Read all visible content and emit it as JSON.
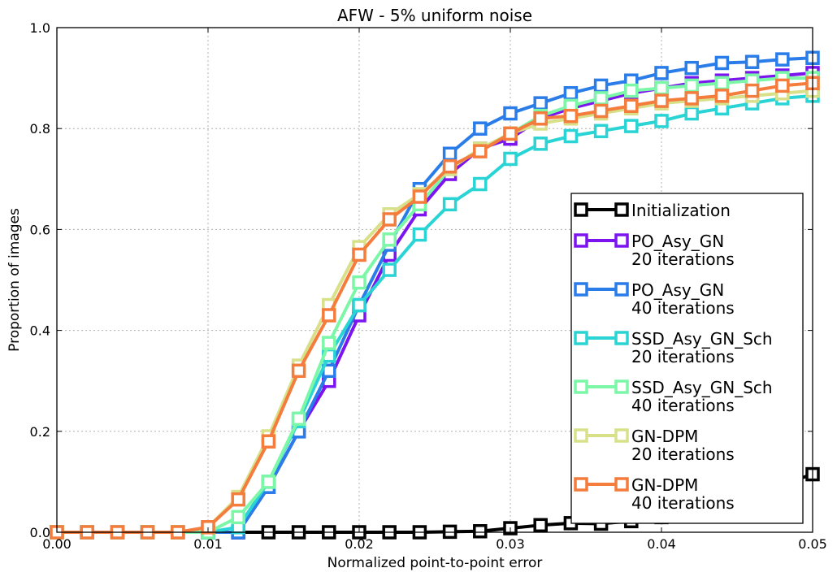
{
  "chart_data": {
    "type": "line",
    "title": "AFW - 5% uniform noise",
    "xlabel": "Normalized point-to-point error",
    "ylabel": "Proportion of images",
    "xlim": [
      0,
      0.05
    ],
    "ylim": [
      0,
      1.0
    ],
    "xticks": [
      "0.00",
      "0.01",
      "0.02",
      "0.03",
      "0.04",
      "0.05"
    ],
    "yticks": [
      "0.0",
      "0.2",
      "0.4",
      "0.6",
      "0.8",
      "1.0"
    ],
    "grid": true,
    "legend_position": "lower-right",
    "marker": "open-square",
    "x": [
      0.0,
      0.002,
      0.004,
      0.006,
      0.008,
      0.01,
      0.012,
      0.014,
      0.016,
      0.018,
      0.02,
      0.022,
      0.024,
      0.026,
      0.028,
      0.03,
      0.032,
      0.034,
      0.036,
      0.038,
      0.04,
      0.042,
      0.044,
      0.046,
      0.048,
      0.05
    ],
    "series": [
      {
        "name": "Initialization",
        "color": "#000000",
        "values": [
          0,
          0,
          0,
          0,
          0,
          0,
          0,
          0,
          0,
          0,
          0,
          0,
          0,
          0.001,
          0.002,
          0.008,
          0.014,
          0.018,
          0.017,
          0.022,
          0.03,
          0.04,
          0.055,
          0.075,
          0.095,
          0.115
        ]
      },
      {
        "name": "PO_Asy_GN\n20 iterations",
        "color": "#7b14ee",
        "values": [
          0,
          0,
          0,
          0,
          0,
          0,
          0,
          0.09,
          0.2,
          0.3,
          0.43,
          0.55,
          0.64,
          0.71,
          0.76,
          0.78,
          0.82,
          0.84,
          0.855,
          0.87,
          0.88,
          0.89,
          0.895,
          0.9,
          0.905,
          0.91
        ]
      },
      {
        "name": "PO_Asy_GN\n40 iterations",
        "color": "#2a7de8",
        "values": [
          0,
          0,
          0,
          0,
          0,
          0,
          0,
          0.09,
          0.2,
          0.32,
          0.45,
          0.57,
          0.68,
          0.75,
          0.8,
          0.83,
          0.85,
          0.87,
          0.885,
          0.895,
          0.91,
          0.92,
          0.93,
          0.932,
          0.937,
          0.94
        ]
      },
      {
        "name": "SSD_Asy_GN_Sch\n20 iterations",
        "color": "#2bd4d4",
        "values": [
          0,
          0,
          0,
          0,
          0,
          0,
          0.01,
          0.1,
          0.22,
          0.35,
          0.45,
          0.52,
          0.59,
          0.65,
          0.69,
          0.74,
          0.77,
          0.785,
          0.795,
          0.805,
          0.815,
          0.83,
          0.84,
          0.85,
          0.86,
          0.865
        ]
      },
      {
        "name": "SSD_Asy_GN_Sch\n40 iterations",
        "color": "#7cf7a8",
        "values": [
          0,
          0,
          0,
          0,
          0,
          0,
          0.03,
          0.1,
          0.225,
          0.375,
          0.495,
          0.58,
          0.65,
          0.72,
          0.76,
          0.79,
          0.825,
          0.845,
          0.86,
          0.875,
          0.88,
          0.885,
          0.89,
          0.895,
          0.9,
          0.9
        ]
      },
      {
        "name": "GN-DPM\n20 iterations",
        "color": "#d8e08a",
        "values": [
          0,
          0,
          0,
          0,
          0,
          0.01,
          0.07,
          0.19,
          0.33,
          0.45,
          0.565,
          0.63,
          0.67,
          0.72,
          0.76,
          0.79,
          0.81,
          0.82,
          0.83,
          0.84,
          0.85,
          0.855,
          0.86,
          0.865,
          0.87,
          0.875
        ]
      },
      {
        "name": "GN-DPM\n40 iterations",
        "color": "#f47c3c",
        "values": [
          0,
          0,
          0,
          0,
          0,
          0.01,
          0.065,
          0.18,
          0.32,
          0.43,
          0.55,
          0.62,
          0.665,
          0.725,
          0.755,
          0.79,
          0.82,
          0.825,
          0.835,
          0.845,
          0.855,
          0.86,
          0.865,
          0.875,
          0.885,
          0.89
        ]
      }
    ]
  }
}
